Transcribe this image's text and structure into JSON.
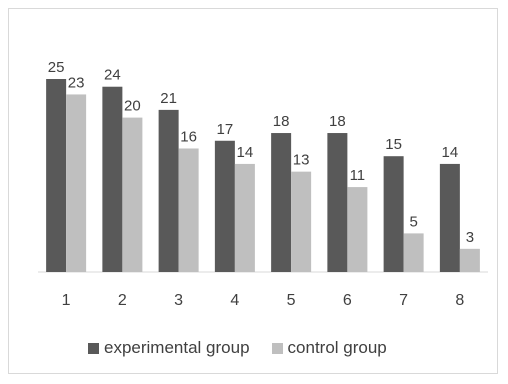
{
  "chart_data": {
    "type": "bar",
    "categories": [
      "1",
      "2",
      "3",
      "4",
      "5",
      "6",
      "7",
      "8"
    ],
    "series": [
      {
        "name": "experimental group",
        "values": [
          25,
          24,
          21,
          17,
          18,
          18,
          15,
          14
        ],
        "color": "#595959"
      },
      {
        "name": "control group",
        "values": [
          23,
          20,
          16,
          14,
          13,
          11,
          5,
          3
        ],
        "color": "#bfbfbf"
      }
    ],
    "ylim": [
      0,
      25
    ],
    "grid": false,
    "legend_position": "bottom",
    "data_labels": true
  }
}
